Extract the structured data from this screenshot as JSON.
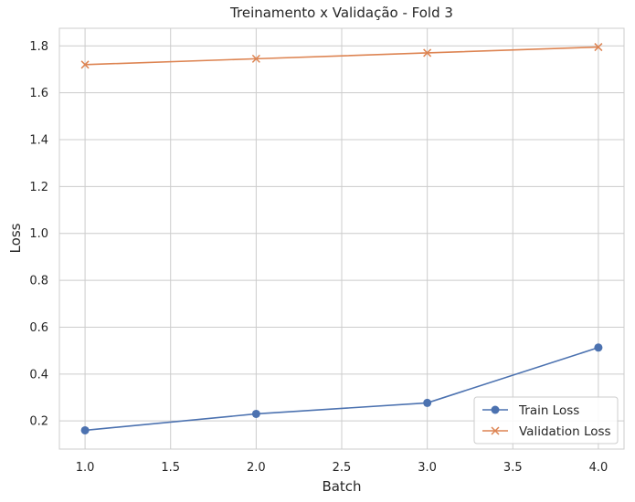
{
  "chart_data": {
    "type": "line",
    "title": "Treinamento x Validação - Fold 3",
    "xlabel": "Batch",
    "ylabel": "Loss",
    "x": [
      1.0,
      2.0,
      3.0,
      4.0
    ],
    "xlim": [
      0.85,
      4.15
    ],
    "ylim": [
      0.08,
      1.875
    ],
    "xticks": [
      1.0,
      1.5,
      2.0,
      2.5,
      3.0,
      3.5,
      4.0
    ],
    "xtick_labels": [
      "1.0",
      "1.5",
      "2.0",
      "2.5",
      "3.0",
      "3.5",
      "4.0"
    ],
    "yticks": [
      0.2,
      0.4,
      0.6,
      0.8,
      1.0,
      1.2,
      1.4,
      1.6,
      1.8
    ],
    "ytick_labels": [
      "0.2",
      "0.4",
      "0.6",
      "0.8",
      "1.0",
      "1.2",
      "1.4",
      "1.6",
      "1.8"
    ],
    "grid": true,
    "legend_position": "lower-right",
    "series": [
      {
        "name": "Train Loss",
        "values": [
          0.16,
          0.23,
          0.277,
          0.513
        ],
        "color": "#4c72b0",
        "marker": "circle"
      },
      {
        "name": "Validation Loss",
        "values": [
          1.72,
          1.745,
          1.77,
          1.795
        ],
        "color": "#dd8452",
        "marker": "x"
      }
    ]
  }
}
